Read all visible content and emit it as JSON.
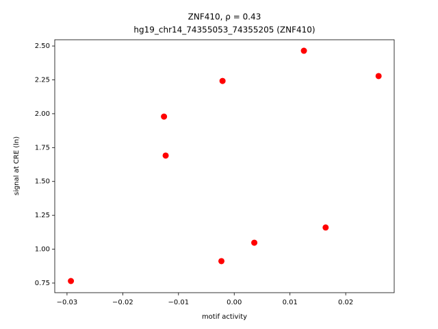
{
  "chart_data": {
    "type": "scatter",
    "title": "ZNF410, ρ = 0.43",
    "subtitle": "hg19_chr14_74355053_74355205 (ZNF410)",
    "x_label": "motif activity",
    "y_label": "signal at CRE (ln)",
    "series": [
      {
        "color": "#ff0000",
        "x": [
          -0.0293,
          -0.0126,
          -0.0123,
          -0.0021,
          -0.0023,
          0.0036,
          0.0125,
          0.0164,
          0.0259
        ],
        "values": [
          0.765,
          1.979,
          1.691,
          2.242,
          0.912,
          1.048,
          2.465,
          1.16,
          2.278
        ]
      }
    ],
    "xlim": [
      -0.0322,
      0.0287
    ],
    "ylim": [
      0.679,
      2.546
    ],
    "xticks": [
      {
        "value": -0.03,
        "label": "−0.03"
      },
      {
        "value": -0.02,
        "label": "−0.02"
      },
      {
        "value": -0.01,
        "label": "−0.01"
      },
      {
        "value": 0,
        "label": "0.00"
      },
      0.01,
      0.02
    ],
    "yticks": [
      0.75,
      {
        "value": 1,
        "label": "1.00"
      },
      1.25,
      {
        "value": 1.5,
        "label": "1.50"
      },
      1.75,
      {
        "value": 2,
        "label": "2.00"
      },
      2.25,
      {
        "value": 2.5,
        "label": "2.50"
      }
    ]
  }
}
